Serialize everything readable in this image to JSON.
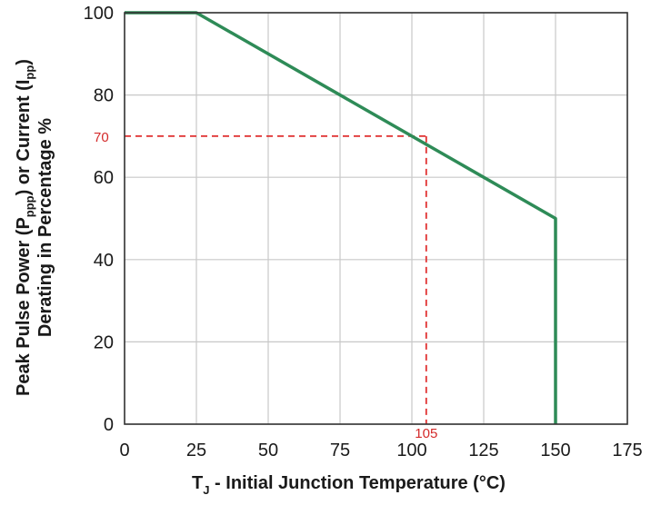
{
  "chart_data": {
    "type": "line",
    "xlabel_main": "T",
    "xlabel_sub": "J",
    "xlabel_rest": " - Initial Junction Temperature (°C)",
    "ylabel_line1": {
      "part1": "Peak Pulse Power (P",
      "sub1": "ppp",
      "part2": ") or Current (I",
      "sub2": "pp",
      "part3": ")"
    },
    "ylabel_line2": "Derating in Percentage %",
    "xlim": [
      0,
      175
    ],
    "ylim": [
      0,
      100
    ],
    "x_ticks": [
      "0",
      "25",
      "50",
      "75",
      "100",
      "125",
      "150",
      "175"
    ],
    "y_ticks": [
      "0",
      "20",
      "40",
      "60",
      "80",
      "100"
    ],
    "x_tick_values": [
      0,
      25,
      50,
      75,
      100,
      125,
      150,
      175
    ],
    "y_tick_values": [
      0,
      20,
      40,
      60,
      80,
      100
    ],
    "grid": true,
    "series": [
      {
        "x": [
          0,
          25,
          150,
          150
        ],
        "y": [
          100,
          100,
          50,
          0
        ],
        "color": "#2e8b57"
      }
    ],
    "annotations": [
      {
        "type": "reference",
        "x": 105,
        "y": 70,
        "x_label": "105",
        "y_label": "70",
        "color": "#e03030"
      }
    ]
  }
}
